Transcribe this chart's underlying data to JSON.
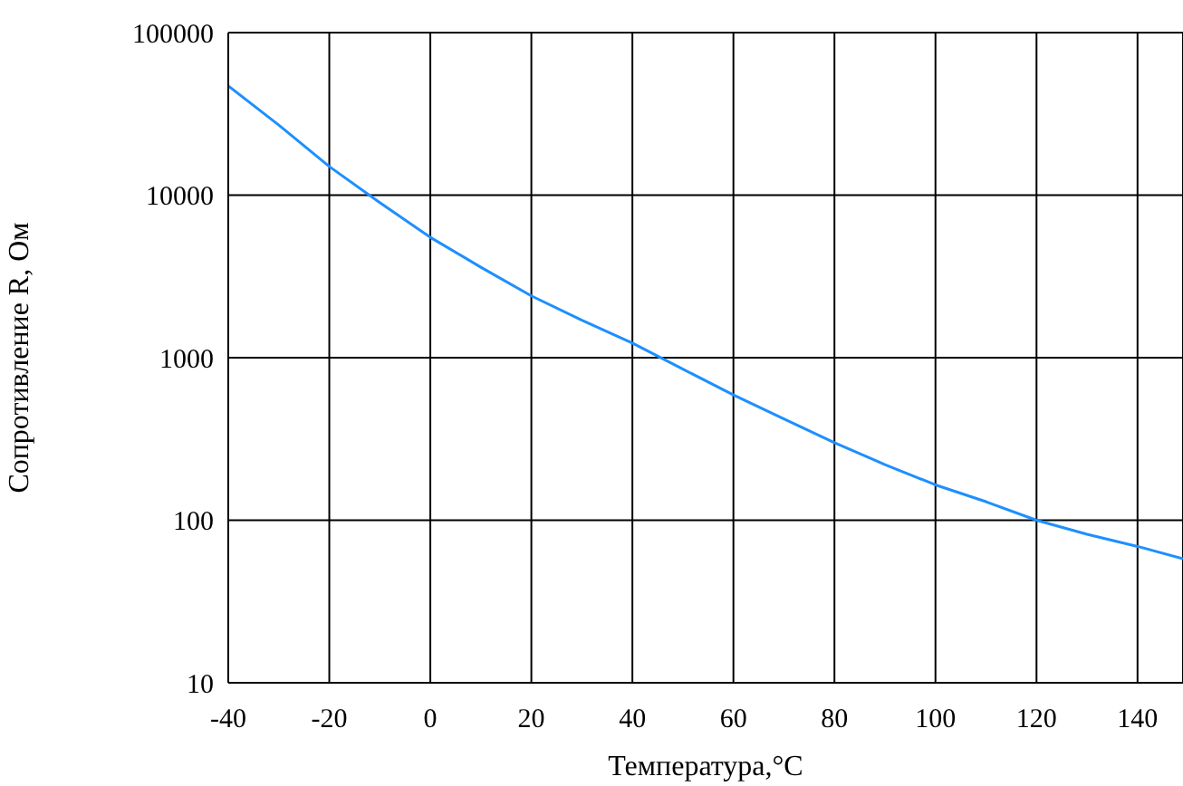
{
  "chart_data": {
    "type": "line",
    "xlabel": "Температура,°С",
    "ylabel": "Сопротивление R, Ом",
    "x": [
      -40,
      -30,
      -20,
      -10,
      0,
      10,
      20,
      30,
      40,
      50,
      60,
      70,
      80,
      90,
      100,
      110,
      120,
      130,
      140,
      149
    ],
    "series": [
      {
        "color": "#1e8fff",
        "values": [
          47000,
          27000,
          15000,
          9000,
          5500,
          3600,
          2400,
          1700,
          1230,
          850,
          590,
          420,
          300,
          220,
          165,
          130,
          100,
          82,
          69,
          58
        ]
      }
    ],
    "xlim": [
      -40,
      149
    ],
    "xticks": [
      -40,
      -20,
      0,
      20,
      40,
      60,
      80,
      100,
      120,
      140
    ],
    "ylim": [
      10,
      100000
    ],
    "yticks": [
      10,
      100,
      1000,
      10000,
      100000
    ],
    "log": "y",
    "grid": true,
    "legend": false,
    "marker": "none",
    "line_style": "solid"
  }
}
